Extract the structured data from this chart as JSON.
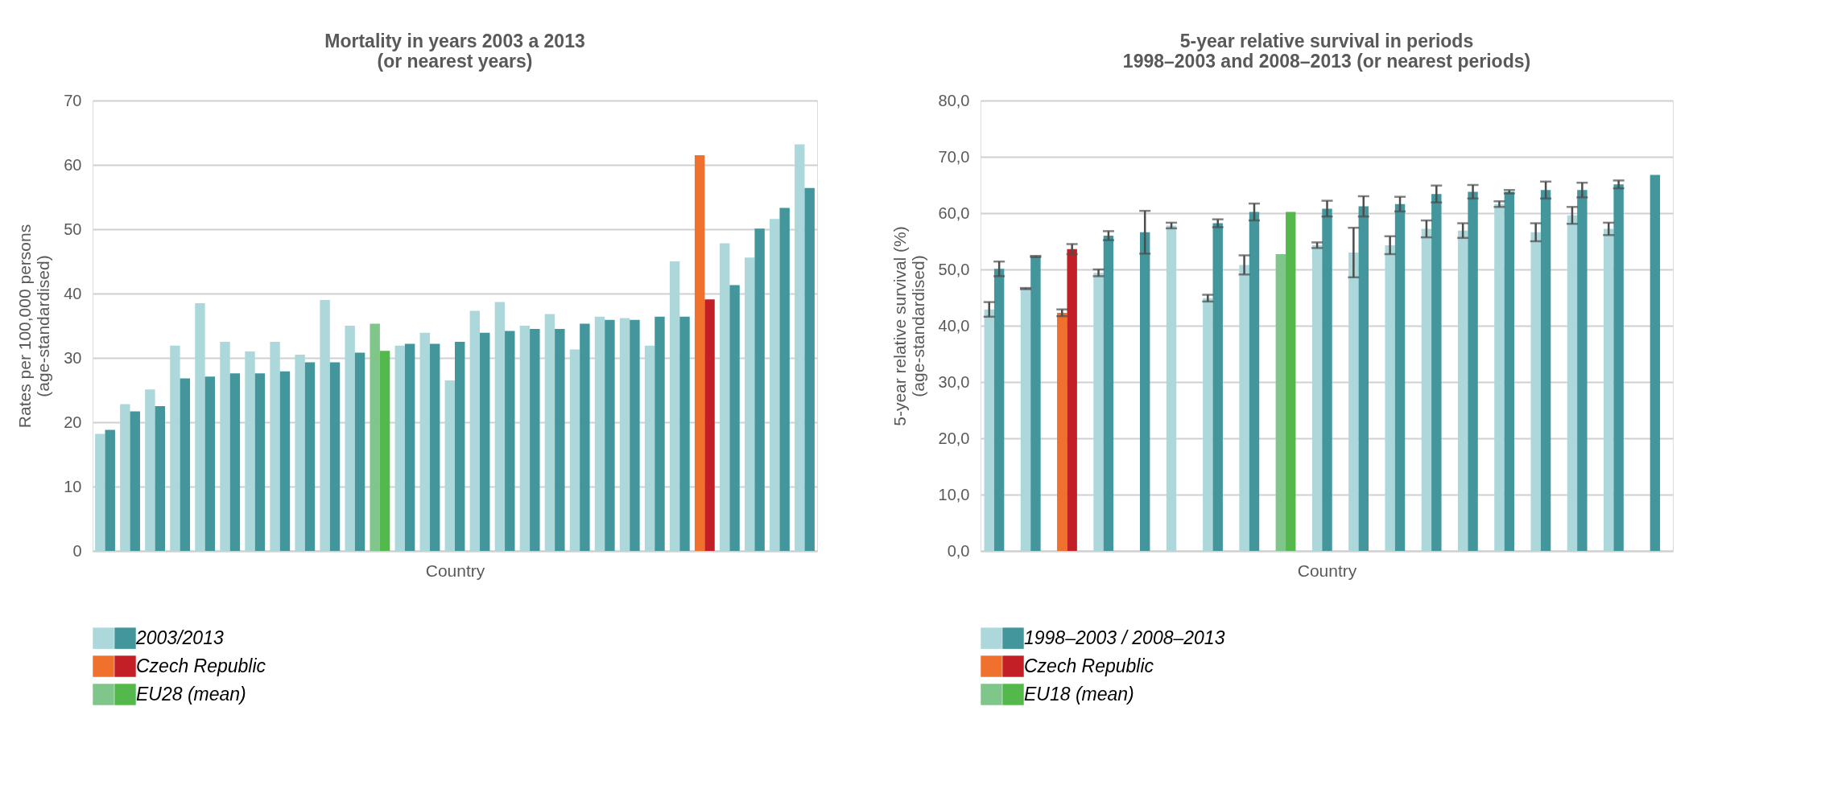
{
  "chart_data": [
    {
      "type": "bar",
      "title": "Mortality in years 2003 a 2013\n(or nearest years)",
      "xlabel": "Country",
      "ylabel": "Rates per 100,000 persons\n(age-standardised)",
      "categories": [
        null,
        null,
        null,
        null,
        null,
        null,
        null,
        null,
        null,
        null,
        null,
        null,
        null,
        null,
        null,
        null,
        null,
        null,
        null,
        null,
        null,
        null,
        null,
        null,
        null,
        null,
        null,
        null,
        null
      ],
      "series": [
        {
          "name": "2003/2013",
          "color": "#acd8db",
          "values": [
            18.2,
            22.8,
            25.1,
            31.9,
            38.5,
            32.5,
            31.0,
            32.5,
            30.5,
            39.0,
            35.0,
            null,
            31.9,
            33.9,
            26.5,
            37.3,
            38.7,
            35.0,
            36.8,
            31.3,
            36.4,
            36.2,
            31.9,
            45.0,
            null,
            47.8,
            45.6,
            51.6,
            63.2
          ]
        },
        {
          "color": "#42969c",
          "values": [
            18.8,
            21.7,
            22.5,
            26.8,
            27.1,
            27.6,
            27.6,
            27.9,
            29.3,
            29.3,
            30.8,
            null,
            32.2,
            32.2,
            32.5,
            33.9,
            34.2,
            34.5,
            34.5,
            35.3,
            35.9,
            35.9,
            36.4,
            36.4,
            null,
            41.3,
            50.1,
            53.3,
            56.4
          ]
        },
        {
          "name": "Czech Republic",
          "color": "#f0702e",
          "values": [
            null,
            null,
            null,
            null,
            null,
            null,
            null,
            null,
            null,
            null,
            null,
            null,
            null,
            null,
            null,
            null,
            null,
            null,
            null,
            null,
            null,
            null,
            null,
            null,
            61.5,
            null,
            null,
            null,
            null
          ]
        },
        {
          "color": "#c21f26",
          "values": [
            null,
            null,
            null,
            null,
            null,
            null,
            null,
            null,
            null,
            null,
            null,
            null,
            null,
            null,
            null,
            null,
            null,
            null,
            null,
            null,
            null,
            null,
            null,
            null,
            39.1,
            null,
            null,
            null,
            null
          ]
        },
        {
          "name": "EU28 (mean)",
          "color": "#80c589",
          "values": [
            null,
            null,
            null,
            null,
            null,
            null,
            null,
            null,
            null,
            null,
            null,
            35.3,
            null,
            null,
            null,
            null,
            null,
            null,
            null,
            null,
            null,
            null,
            null,
            null,
            null,
            null,
            null,
            null,
            null
          ]
        },
        {
          "color": "#55b84d",
          "values": [
            null,
            null,
            null,
            null,
            null,
            null,
            null,
            null,
            null,
            null,
            null,
            31.1,
            null,
            null,
            null,
            null,
            null,
            null,
            null,
            null,
            null,
            null,
            null,
            null,
            null,
            null,
            null,
            null,
            null
          ]
        }
      ],
      "ylim": [
        0,
        70
      ],
      "yticks": [
        0,
        10,
        20,
        30,
        40,
        50,
        60,
        70
      ],
      "grid": "y",
      "legend": "bottom",
      "tick_labels": "y"
    },
    {
      "type": "bar",
      "title": "5-year relative survival in periods\n1998–2003  and 2008–2013  (or nearest periods)",
      "xlabel": "Country",
      "ylabel": "5-year relative  survival  (%)\n(age-standardised)",
      "categories": [
        null,
        null,
        null,
        null,
        null,
        null,
        null,
        null,
        null,
        null,
        null,
        null,
        null,
        null,
        null,
        null,
        null,
        null,
        null
      ],
      "series": [
        {
          "name": "1998–2003 / 2008–2013",
          "color": "#acd8db",
          "values": [
            42.9,
            46.6,
            null,
            49.4,
            null,
            57.8,
            44.9,
            50.8,
            null,
            54.3,
            53.0,
            54.3,
            57.2,
            56.9,
            61.6,
            56.6,
            59.6,
            57.2,
            null
          ],
          "errors": [
            1.3,
            0.1,
            null,
            0.6,
            null,
            0.5,
            0.6,
            1.7,
            null,
            0.5,
            4.4,
            1.6,
            1.5,
            1.3,
            0.5,
            1.6,
            1.5,
            1.1,
            null
          ]
        },
        {
          "color": "#42969c",
          "values": [
            50.1,
            52.3,
            null,
            56.0,
            56.6,
            null,
            58.2,
            60.2,
            null,
            60.8,
            61.2,
            61.6,
            63.4,
            63.8,
            63.8,
            64.1,
            64.1,
            65.1,
            66.8
          ],
          "errors": [
            1.3,
            0.1,
            null,
            0.8,
            3.8,
            null,
            0.7,
            1.5,
            null,
            1.4,
            1.8,
            1.3,
            1.5,
            1.2,
            0.3,
            1.5,
            1.3,
            0.7,
            null
          ]
        },
        {
          "name": "Czech Republic",
          "color": "#f0702e",
          "values": [
            null,
            null,
            42.3,
            null,
            null,
            null,
            null,
            null,
            null,
            null,
            null,
            null,
            null,
            null,
            null,
            null,
            null,
            null,
            null
          ],
          "errors": [
            null,
            null,
            0.6,
            null,
            null,
            null,
            null,
            null,
            null,
            null,
            null,
            null,
            null,
            null,
            null,
            null,
            null,
            null,
            null
          ]
        },
        {
          "color": "#c21f26",
          "values": [
            null,
            null,
            53.6,
            null,
            null,
            null,
            null,
            null,
            null,
            null,
            null,
            null,
            null,
            null,
            null,
            null,
            null,
            null,
            null
          ],
          "errors": [
            null,
            null,
            0.9,
            null,
            null,
            null,
            null,
            null,
            null,
            null,
            null,
            null,
            null,
            null,
            null,
            null,
            null,
            null,
            null
          ]
        },
        {
          "name": "EU18 (mean)",
          "color": "#80c589",
          "values": [
            null,
            null,
            null,
            null,
            null,
            null,
            null,
            null,
            52.7,
            null,
            null,
            null,
            null,
            null,
            null,
            null,
            null,
            null,
            null
          ]
        },
        {
          "color": "#55b84d",
          "values": [
            null,
            null,
            null,
            null,
            null,
            null,
            null,
            null,
            60.2,
            null,
            null,
            null,
            null,
            null,
            null,
            null,
            null,
            null,
            null
          ]
        }
      ],
      "ylim": [
        0,
        80
      ],
      "yticks": [
        {
          "value": 0,
          "label": "0,0"
        },
        {
          "value": 10,
          "label": "10,0"
        },
        {
          "value": 20,
          "label": "20,0"
        },
        {
          "value": 30,
          "label": "30,0"
        },
        {
          "value": 40,
          "label": "40,0"
        },
        {
          "value": 50,
          "label": "50,0"
        },
        {
          "value": 60,
          "label": "60,0"
        },
        {
          "value": 70,
          "label": "70,0"
        },
        {
          "value": 80,
          "label": "80,0"
        }
      ],
      "grid": "y",
      "legend": "bottom",
      "tick_labels": "y"
    }
  ]
}
